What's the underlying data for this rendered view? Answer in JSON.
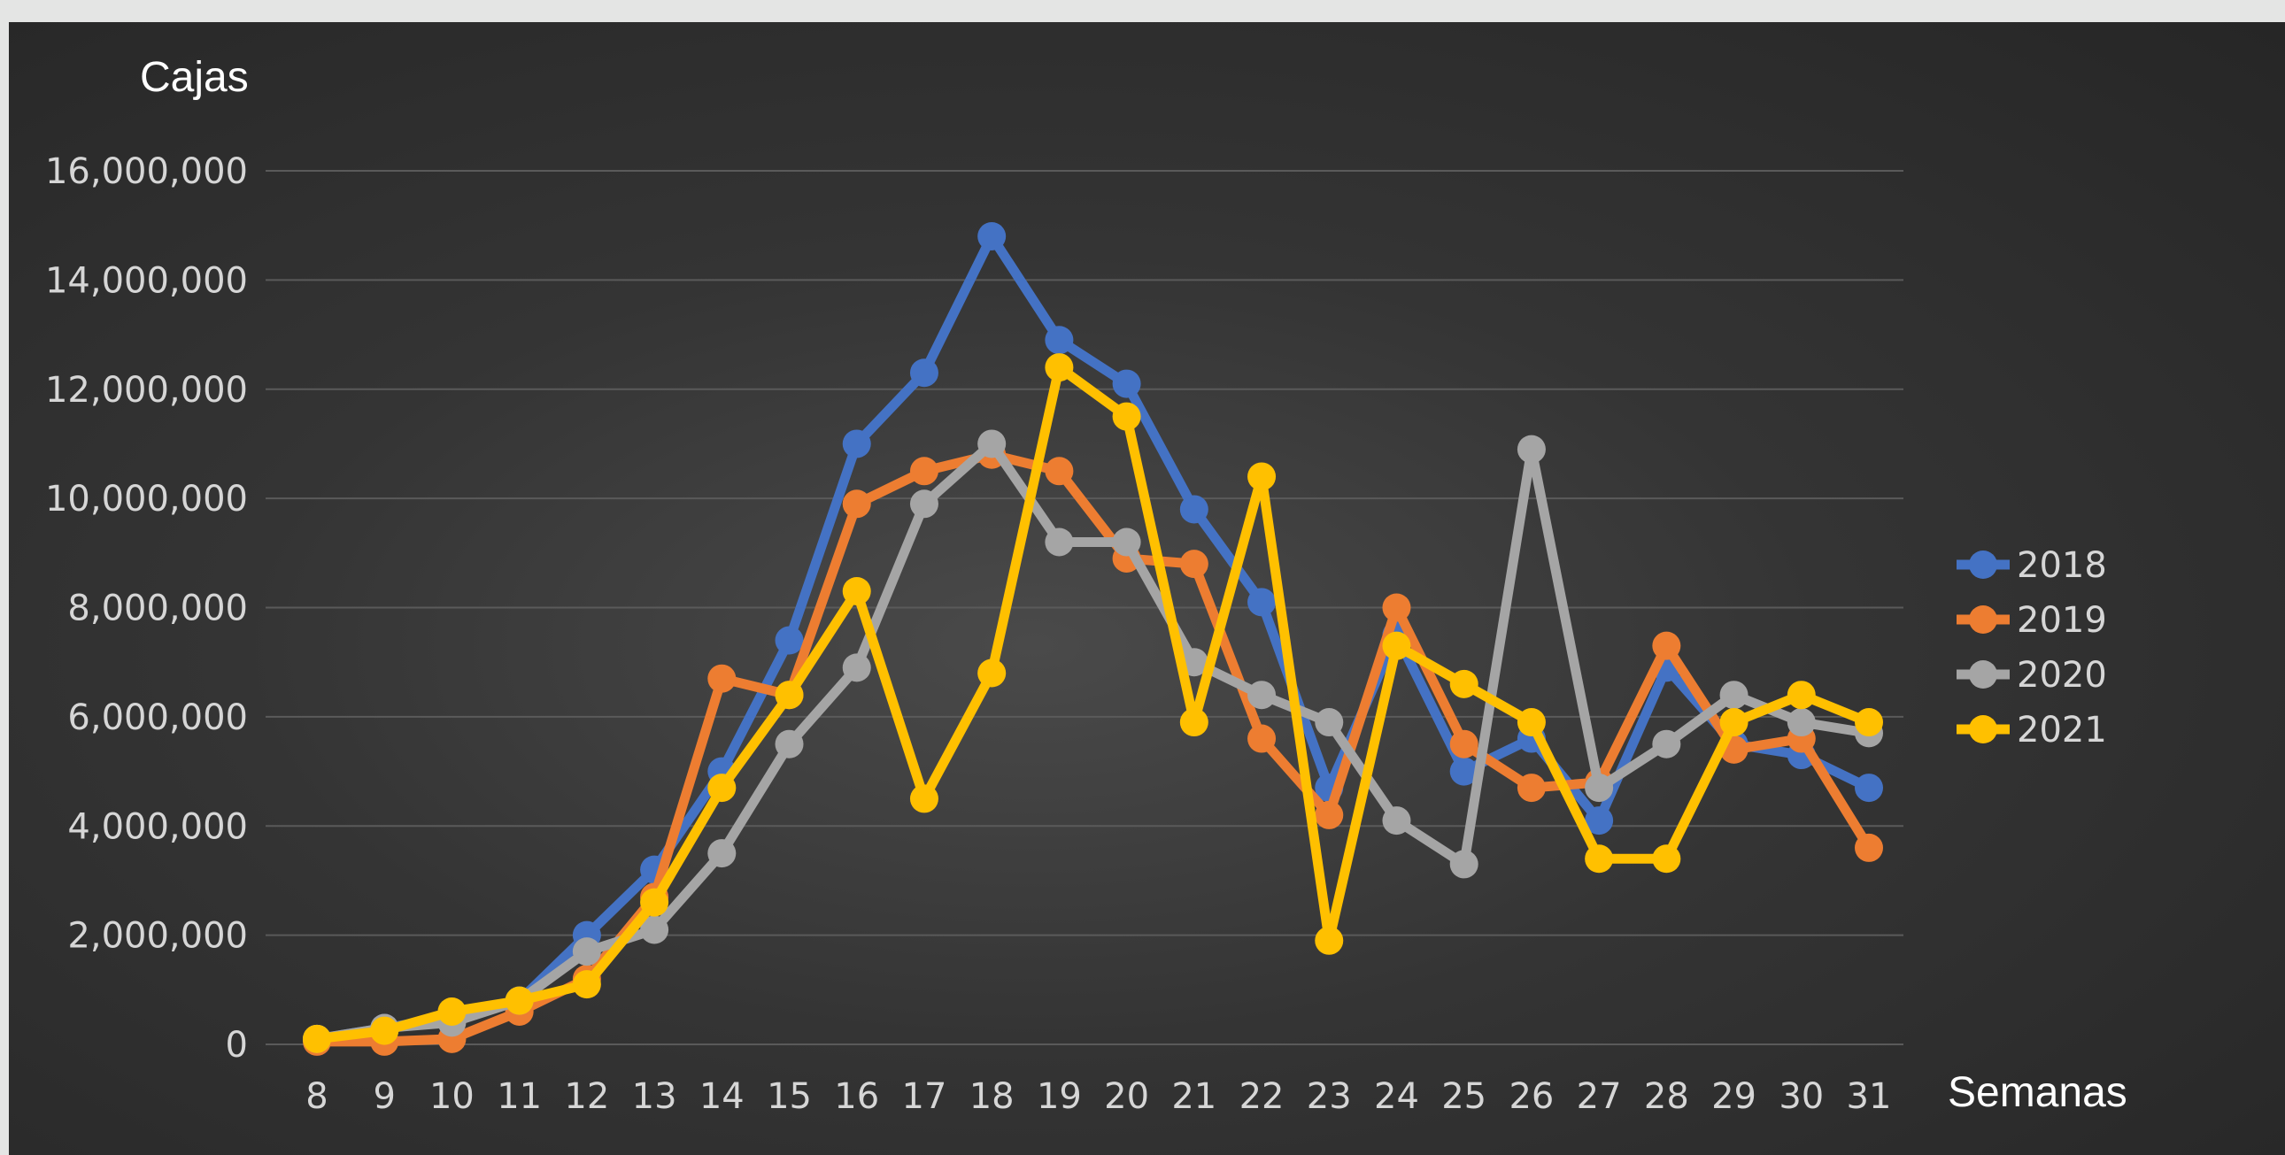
{
  "chart_data": {
    "type": "line",
    "ylabel": "Cajas",
    "xlabel": "Semanas",
    "x": [
      8,
      9,
      10,
      11,
      12,
      13,
      14,
      15,
      16,
      17,
      18,
      19,
      20,
      21,
      22,
      23,
      24,
      25,
      26,
      27,
      28,
      29,
      30,
      31
    ],
    "ylim": [
      0,
      16000000
    ],
    "yticks": [
      0,
      2000000,
      4000000,
      6000000,
      8000000,
      10000000,
      12000000,
      14000000,
      16000000
    ],
    "ytick_labels": [
      "0",
      "2,000,000",
      "4,000,000",
      "6,000,000",
      "8,000,000",
      "10,000,000",
      "12,000,000",
      "14,000,000",
      "16,000,000"
    ],
    "grid": true,
    "legend_position": "right",
    "series": [
      {
        "name": "2018",
        "color": "#4472c4",
        "values": [
          100000,
          300000,
          500000,
          800000,
          2000000,
          3200000,
          5000000,
          7400000,
          11000000,
          12300000,
          14800000,
          12900000,
          12100000,
          9800000,
          8100000,
          4700000,
          7500000,
          5000000,
          5600000,
          4100000,
          6900000,
          5500000,
          5300000,
          4700000
        ]
      },
      {
        "name": "2019",
        "color": "#ed7d31",
        "values": [
          50000,
          50000,
          100000,
          600000,
          1200000,
          2700000,
          6700000,
          6400000,
          9900000,
          10500000,
          10800000,
          10500000,
          8900000,
          8800000,
          5600000,
          4200000,
          8000000,
          5500000,
          4700000,
          4800000,
          7300000,
          5400000,
          5600000,
          3600000
        ]
      },
      {
        "name": "2020",
        "color": "#a5a5a5",
        "values": [
          100000,
          300000,
          400000,
          800000,
          1700000,
          2100000,
          3500000,
          5500000,
          6900000,
          9900000,
          11000000,
          9200000,
          9200000,
          7000000,
          6400000,
          5900000,
          4100000,
          3300000,
          10900000,
          4700000,
          5500000,
          6400000,
          5900000,
          5700000
        ]
      },
      {
        "name": "2021",
        "color": "#ffc000",
        "values": [
          100000,
          250000,
          600000,
          800000,
          1100000,
          2600000,
          4700000,
          6400000,
          8300000,
          4500000,
          6800000,
          12400000,
          11500000,
          5900000,
          10400000,
          1900000,
          7300000,
          6600000,
          5900000,
          3400000,
          3400000,
          5900000,
          6400000,
          5900000
        ]
      }
    ]
  }
}
